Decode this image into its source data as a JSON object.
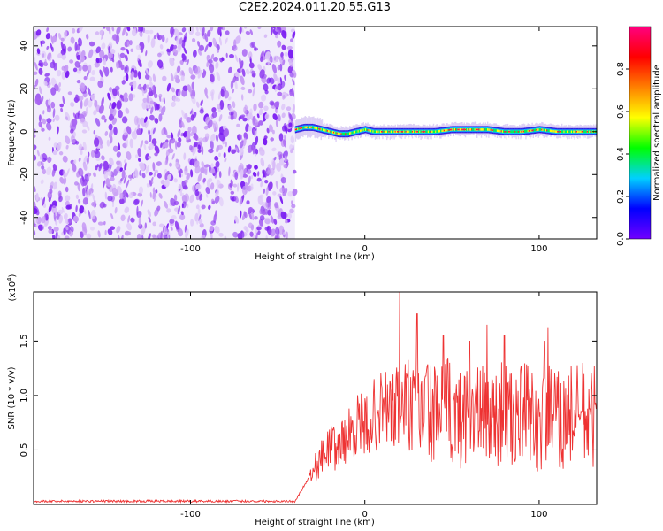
{
  "title": "C2E2.2024.011.20.55.G13",
  "chart_data": [
    {
      "type": "heatmap",
      "xlabel": "Height of straight line (km)",
      "ylabel": "Frequency (Hz)",
      "xlim": [
        -190,
        133
      ],
      "ylim": [
        -50,
        49
      ],
      "x_ticks": [
        -100,
        0,
        100
      ],
      "y_ticks": [
        -40,
        -20,
        0,
        20,
        40
      ],
      "noise_region_x": [
        -190,
        -40
      ],
      "signal_track": {
        "x": [
          -40,
          -35,
          -30,
          -25,
          -20,
          -15,
          -10,
          -5,
          0,
          5,
          10,
          20,
          30,
          40,
          50,
          60,
          70,
          80,
          90,
          100,
          110,
          120,
          133
        ],
        "freq": [
          1,
          2,
          2,
          1,
          0,
          -1,
          -1,
          0,
          1,
          0,
          0,
          0,
          0,
          0,
          1,
          1,
          1,
          0,
          0,
          1,
          0,
          0,
          0
        ]
      },
      "colorbar": {
        "label": "Normalized spectral amplitude",
        "range": [
          0.0,
          1.0
        ],
        "ticks": [
          "0.0",
          "0.2",
          "0.4",
          "0.6",
          "0.8"
        ],
        "colors": [
          "#7000ff",
          "#0000ff",
          "#00d0ff",
          "#00ff00",
          "#ffff00",
          "#ff8000",
          "#ff0000",
          "#ff0080"
        ]
      }
    },
    {
      "type": "line",
      "xlabel": "Height of straight line (km)",
      "ylabel": "SNR (10 * v/v)",
      "y_scale_label": "(x10",
      "y_scale_exp": "4",
      "y_scale_close": ")",
      "xlim": [
        -190,
        133
      ],
      "ylim": [
        0,
        1.95
      ],
      "x_ticks": [
        -100,
        0,
        100
      ],
      "y_ticks": [
        0.5,
        1.0,
        1.5
      ],
      "y_tick_labels": [
        "0.5",
        "1.0",
        "1.5"
      ],
      "series": [
        {
          "color": "#ee3333",
          "x": [
            -190,
            -40,
            -32,
            -28,
            -24,
            -20,
            -16,
            -12,
            -8,
            -4,
            0,
            4,
            8,
            12,
            16,
            20,
            24,
            28,
            32,
            36,
            40,
            44,
            48,
            52,
            56,
            60,
            64,
            68,
            72,
            76,
            80,
            84,
            88,
            92,
            96,
            100,
            104,
            108,
            112,
            116,
            120,
            124,
            128,
            133
          ],
          "y": [
            0.03,
            0.03,
            0.25,
            0.35,
            0.45,
            0.55,
            0.5,
            0.6,
            0.65,
            0.75,
            0.7,
            0.8,
            0.85,
            0.9,
            0.85,
            0.9,
            0.95,
            0.8,
            0.85,
            0.9,
            0.8,
            0.85,
            0.9,
            0.75,
            0.8,
            0.9,
            0.85,
            0.8,
            0.85,
            0.8,
            0.9,
            0.75,
            0.8,
            0.85,
            0.8,
            0.7,
            0.85,
            0.8,
            0.75,
            0.8,
            0.85,
            0.8,
            0.75,
            0.85
          ],
          "spike_x": [
            20,
            30,
            45,
            60,
            70,
            80,
            103,
            105,
            125
          ],
          "spike_y": [
            1.95,
            1.75,
            1.55,
            1.5,
            1.65,
            1.55,
            1.5,
            1.62,
            1.3
          ]
        }
      ]
    }
  ]
}
